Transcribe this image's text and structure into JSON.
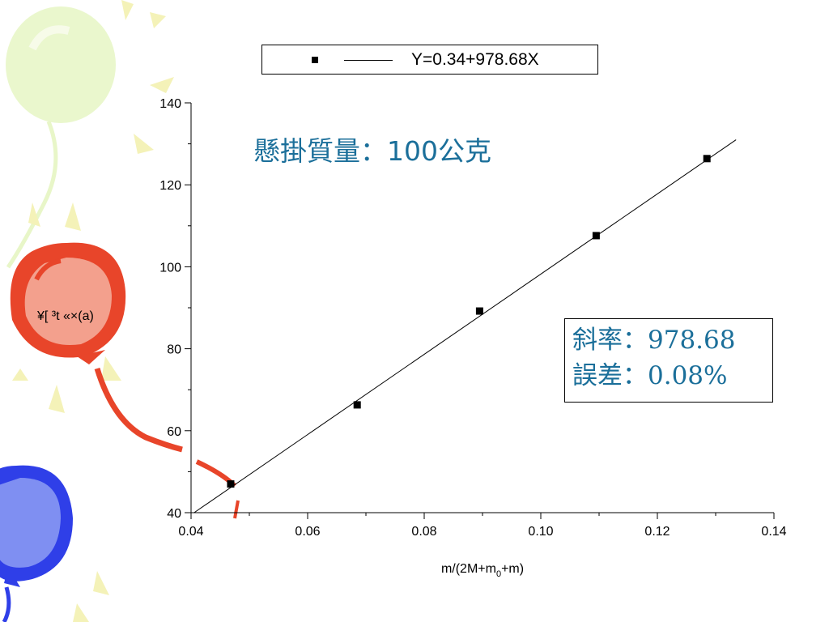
{
  "chart_data": {
    "type": "scatter",
    "x": [
      0.0468,
      0.0685,
      0.0895,
      0.1095,
      0.1285
    ],
    "y": [
      47.0,
      66.3,
      89.2,
      107.6,
      126.4
    ],
    "fit": {
      "intercept": 0.34,
      "slope": 978.68
    },
    "xlabel_parts": {
      "base": "m/(2M+m",
      "sub": "0",
      "tail": "+m)"
    },
    "xlim": [
      0.04,
      0.14
    ],
    "ylim": [
      40,
      140
    ],
    "xticks": [
      "0.04",
      "0.06",
      "0.08",
      "0.10",
      "0.12",
      "0.14"
    ],
    "yticks": [
      "40",
      "60",
      "80",
      "100",
      "120",
      "140"
    ],
    "legend": {
      "label": "Y=0.34+978.68X",
      "placement": "top"
    },
    "grid": false
  },
  "annotation": {
    "title": "懸掛質量：100公克",
    "slope_text": "斜率：978.68",
    "error_text": "誤差：0.08%"
  },
  "balloon_label": "¥[ ³t «×(a)",
  "colors": {
    "balloon_green": "#e8f6c8",
    "balloon_red": "#e8452a",
    "balloon_red_light": "#f3a08d",
    "balloon_blue": "#2f3fe8",
    "balloon_blue_light": "#7f8ff2",
    "annotation_text": "#1b6f9a",
    "sparkle": "#f4f2b8"
  }
}
